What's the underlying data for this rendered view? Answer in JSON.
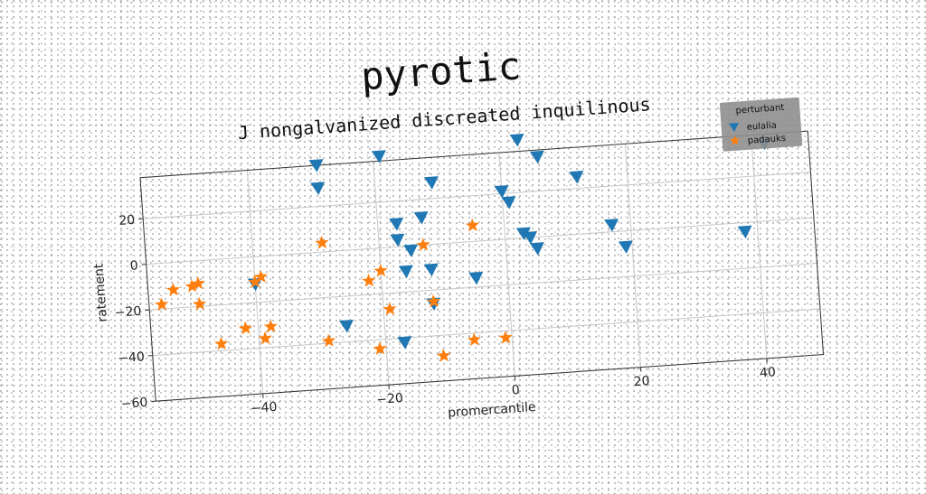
{
  "chart_data": {
    "type": "scatter",
    "suptitle": "pyrotic",
    "title": "J nongalvanized discreated inquilinous",
    "xlabel": "promercantile",
    "ylabel": "ratement",
    "xlim": [
      -57,
      49
    ],
    "ylim": [
      -60,
      38
    ],
    "xticks": [
      -40,
      -20,
      0,
      20,
      40
    ],
    "yticks": [
      -60,
      -40,
      -20,
      0,
      20
    ],
    "grid": true,
    "legend": {
      "title": "perturbant",
      "placement": "top-right"
    },
    "series": [
      {
        "name": "eulalia",
        "marker": "triangle-down",
        "color": "#1f77b4",
        "points": [
          [
            -29,
            38
          ],
          [
            -19,
            40
          ],
          [
            3,
            43
          ],
          [
            6,
            35
          ],
          [
            12,
            25
          ],
          [
            -11,
            27
          ],
          [
            -29,
            28
          ],
          [
            0,
            21
          ],
          [
            1,
            16
          ],
          [
            -17,
            10
          ],
          [
            -13,
            12
          ],
          [
            -17,
            3
          ],
          [
            -15,
            -2
          ],
          [
            3,
            2
          ],
          [
            4,
            0
          ],
          [
            5,
            -5
          ],
          [
            17,
            3
          ],
          [
            19,
            -7
          ],
          [
            38,
            -4
          ],
          [
            42,
            34
          ],
          [
            -40,
            -12
          ],
          [
            -16,
            -11
          ],
          [
            -12,
            -11
          ],
          [
            -5,
            -16
          ],
          [
            -12,
            -26
          ],
          [
            -26,
            -33
          ],
          [
            -17,
            -42
          ]
        ]
      },
      {
        "name": "padauks",
        "marker": "star",
        "color": "#ff7f0e",
        "points": [
          [
            -29,
            4
          ],
          [
            -5,
            7
          ],
          [
            -13,
            0
          ],
          [
            -55,
            -18
          ],
          [
            -53,
            -12
          ],
          [
            -50,
            -11
          ],
          [
            -49,
            -10
          ],
          [
            -49,
            -19
          ],
          [
            -39,
            -9
          ],
          [
            -40,
            -11
          ],
          [
            -22,
            -14
          ],
          [
            -20,
            -10
          ],
          [
            -19,
            -27
          ],
          [
            -12,
            -25
          ],
          [
            -38,
            -31
          ],
          [
            -42,
            -31
          ],
          [
            -39,
            -36
          ],
          [
            -46,
            -37
          ],
          [
            -29,
            -39
          ],
          [
            -21,
            -44
          ],
          [
            -11,
            -49
          ],
          [
            -6,
            -43
          ],
          [
            -1,
            -43
          ]
        ]
      }
    ]
  }
}
